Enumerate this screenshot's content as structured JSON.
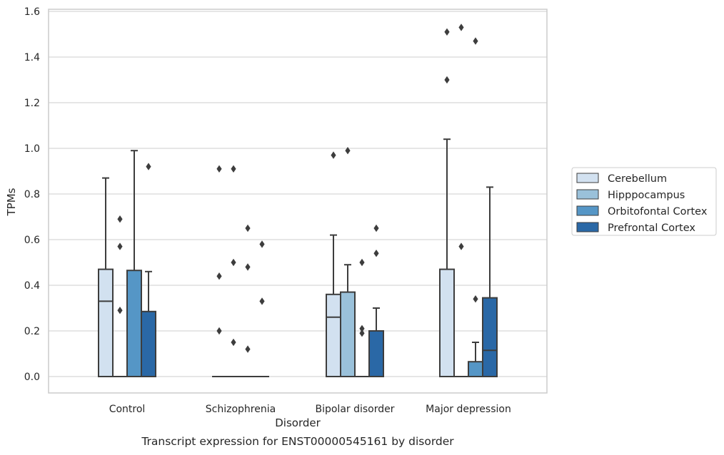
{
  "chart_data": {
    "type": "box",
    "caption": "Transcript expression for ENST00000545161 by disorder",
    "xlabel": "Disorder",
    "ylabel": "TPMs",
    "ylim": [
      -0.075,
      1.61
    ],
    "yticks": [
      0.0,
      0.2,
      0.4,
      0.6,
      0.8,
      1.0,
      1.2,
      1.4,
      1.6
    ],
    "ytick_labels": [
      "0.0",
      "0.2",
      "0.4",
      "0.6",
      "0.8",
      "1.0",
      "1.2",
      "1.4",
      "1.6"
    ],
    "grid": true,
    "legend_position": "right",
    "categories": [
      "Control",
      "Schizophrenia",
      "Bipolar disorder",
      "Major depression"
    ],
    "series": [
      {
        "name": "Cerebellum",
        "color": "#d2e1f0",
        "boxes": [
          {
            "q1": 0,
            "median": 0.33,
            "q3": 0.47,
            "whisker_low": 0,
            "whisker_high": 0.87,
            "outliers": []
          },
          {
            "q1": 0,
            "median": 0,
            "q3": 0,
            "whisker_low": 0,
            "whisker_high": 0,
            "outliers": [
              0.2,
              0.44,
              0.91
            ]
          },
          {
            "q1": 0,
            "median": 0.26,
            "q3": 0.36,
            "whisker_low": 0,
            "whisker_high": 0.62,
            "outliers": [
              0.97
            ]
          },
          {
            "q1": 0,
            "median": 0,
            "q3": 0.47,
            "whisker_low": 0,
            "whisker_high": 1.04,
            "outliers": [
              1.3,
              1.51
            ]
          }
        ]
      },
      {
        "name": "Hipppocampus",
        "color": "#9ac1da",
        "boxes": [
          {
            "q1": 0,
            "median": 0,
            "q3": 0,
            "whisker_low": 0,
            "whisker_high": 0,
            "outliers": [
              0.29,
              0.57,
              0.69
            ]
          },
          {
            "q1": 0,
            "median": 0,
            "q3": 0,
            "whisker_low": 0,
            "whisker_high": 0,
            "outliers": [
              0.15,
              0.5,
              0.91
            ]
          },
          {
            "q1": 0,
            "median": 0,
            "q3": 0.37,
            "whisker_low": 0,
            "whisker_high": 0.49,
            "outliers": [
              0.99
            ]
          },
          {
            "q1": 0,
            "median": 0,
            "q3": 0,
            "whisker_low": 0,
            "whisker_high": 0,
            "outliers": [
              0.57,
              1.53
            ]
          }
        ]
      },
      {
        "name": "Orbitofontal Cortex",
        "color": "#5596c6",
        "boxes": [
          {
            "q1": 0,
            "median": 0,
            "q3": 0.465,
            "whisker_low": 0,
            "whisker_high": 0.99,
            "outliers": []
          },
          {
            "q1": 0,
            "median": 0,
            "q3": 0,
            "whisker_low": 0,
            "whisker_high": 0,
            "outliers": [
              0.12,
              0.48,
              0.65
            ]
          },
          {
            "q1": 0,
            "median": 0,
            "q3": 0,
            "whisker_low": 0,
            "whisker_high": 0,
            "outliers": [
              0.19,
              0.21,
              0.5
            ]
          },
          {
            "q1": 0,
            "median": 0,
            "q3": 0.065,
            "whisker_low": 0,
            "whisker_high": 0.15,
            "outliers": [
              0.34,
              1.47
            ]
          }
        ]
      },
      {
        "name": "Prefrontal Cortex",
        "color": "#2a68a6",
        "boxes": [
          {
            "q1": 0,
            "median": 0,
            "q3": 0.285,
            "whisker_low": 0,
            "whisker_high": 0.46,
            "outliers": [
              0.92
            ]
          },
          {
            "q1": 0,
            "median": 0,
            "q3": 0,
            "whisker_low": 0,
            "whisker_high": 0,
            "outliers": [
              0.33,
              0.58
            ]
          },
          {
            "q1": 0,
            "median": 0,
            "q3": 0.2,
            "whisker_low": 0,
            "whisker_high": 0.3,
            "outliers": [
              0.54,
              0.65
            ]
          },
          {
            "q1": 0,
            "median": 0.115,
            "q3": 0.345,
            "whisker_low": 0,
            "whisker_high": 0.83,
            "outliers": []
          }
        ]
      }
    ]
  }
}
